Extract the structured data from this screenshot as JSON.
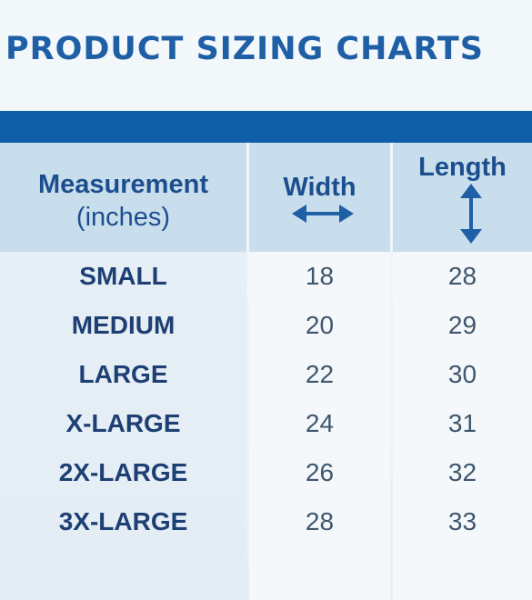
{
  "title": "PRODUCT SIZING CHARTS",
  "table": {
    "header": {
      "measurement_line1": "Measurement",
      "measurement_line2": "(inches)",
      "width": "Width",
      "length": "Length"
    },
    "rows": [
      {
        "size": "SMALL",
        "width": "18",
        "length": "28"
      },
      {
        "size": "MEDIUM",
        "width": "20",
        "length": "29"
      },
      {
        "size": "LARGE",
        "width": "22",
        "length": "30"
      },
      {
        "size": "X-LARGE",
        "width": "24",
        "length": "31"
      },
      {
        "size": "2X-LARGE",
        "width": "26",
        "length": "32"
      },
      {
        "size": "3X-LARGE",
        "width": "28",
        "length": "33"
      }
    ]
  },
  "icons": {
    "width": "horizontal-double-arrow-icon",
    "length": "vertical-double-arrow-icon"
  },
  "colors": {
    "title": "#1f5fa6",
    "bar": "#0e5ea8",
    "header_bg": "#c9deec",
    "header_text": "#1c4e8e",
    "size_text": "#1d3f74",
    "value_text": "#3f566d",
    "arrow": "#1f5fa6"
  }
}
